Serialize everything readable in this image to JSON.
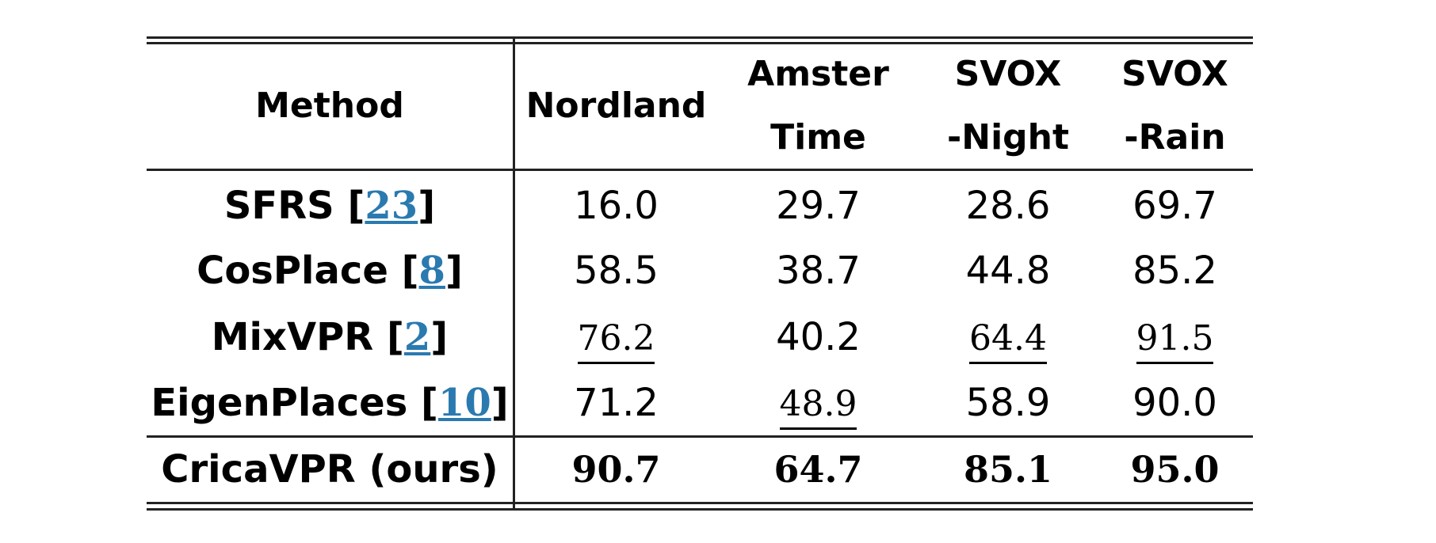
{
  "table": {
    "header": {
      "method": "Method",
      "columns": [
        {
          "line1": "Nordland",
          "line2": ""
        },
        {
          "line1": "Amster",
          "line2": "Time"
        },
        {
          "line1": "SVOX",
          "line2": "-Night"
        },
        {
          "line1": "SVOX",
          "line2": "-Rain"
        }
      ]
    },
    "rows": [
      {
        "method": "SFRS",
        "cite": "23",
        "values": [
          "16.0",
          "29.7",
          "28.6",
          "69.7"
        ],
        "underlined": [
          false,
          false,
          false,
          false
        ],
        "bold": false
      },
      {
        "method": "CosPlace",
        "cite": "8",
        "values": [
          "58.5",
          "38.7",
          "44.8",
          "85.2"
        ],
        "underlined": [
          false,
          false,
          false,
          false
        ],
        "bold": false
      },
      {
        "method": "MixVPR",
        "cite": "2",
        "values": [
          "76.2",
          "40.2",
          "64.4",
          "91.5"
        ],
        "underlined": [
          true,
          false,
          true,
          true
        ],
        "bold": false
      },
      {
        "method": "EigenPlaces",
        "cite": "10",
        "values": [
          "71.2",
          "48.9",
          "58.9",
          "90.0"
        ],
        "underlined": [
          false,
          true,
          false,
          false
        ],
        "bold": false
      }
    ],
    "ours": {
      "method": "CricaVPR (ours)",
      "values": [
        "90.7",
        "64.7",
        "85.1",
        "95.0"
      ]
    }
  }
}
